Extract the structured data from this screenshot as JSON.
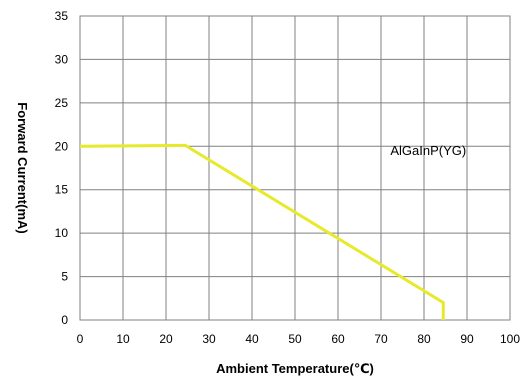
{
  "chart_data": {
    "type": "line",
    "title": "",
    "xlabel": "Ambient  Temperature(℃)",
    "ylabel": "Forward   Current(mA)",
    "xlim": [
      0,
      100
    ],
    "ylim": [
      0,
      35
    ],
    "x_ticks": [
      0,
      10,
      20,
      30,
      40,
      50,
      60,
      70,
      80,
      90,
      100
    ],
    "y_ticks": [
      0,
      5,
      10,
      15,
      20,
      25,
      30,
      35
    ],
    "grid": true,
    "legend": "none",
    "series": [
      {
        "name": "AlGaInP(YG)",
        "color": "#e6ea2a",
        "x": [
          0,
          24.5,
          84.5,
          84.5
        ],
        "y": [
          20,
          20.1,
          2,
          0
        ]
      }
    ],
    "annotations": [
      {
        "text": "AlGaInP(YG)",
        "x": 81,
        "y": 19
      }
    ]
  }
}
